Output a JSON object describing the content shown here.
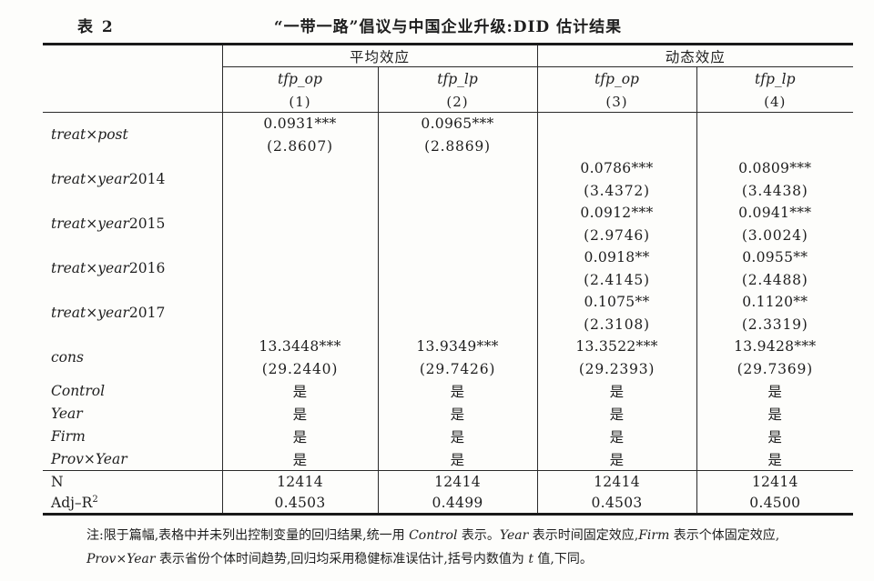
{
  "page": {
    "table_label": "表 2",
    "title": "“一带一路”倡议与中国企业升级:DID 估计结果"
  },
  "table": {
    "col_groups": [
      {
        "label": "平均效应"
      },
      {
        "label": "动态效应"
      }
    ],
    "columns": [
      {
        "var": "tfp_op",
        "num": "(1)"
      },
      {
        "var": "tfp_lp",
        "num": "(2)"
      },
      {
        "var": "tfp_op",
        "num": "(3)"
      },
      {
        "var": "tfp_lp",
        "num": "(4)"
      }
    ],
    "coef_rows": [
      {
        "label_italic": "treat×post",
        "label_roman": "",
        "coefs": [
          "0.0931***",
          "0.0965***",
          "",
          ""
        ],
        "tvals": [
          "(2.8607)",
          "(2.8869)",
          "",
          ""
        ]
      },
      {
        "label_italic": "treat×year",
        "label_roman": "2014",
        "coefs": [
          "",
          "",
          "0.0786***",
          "0.0809***"
        ],
        "tvals": [
          "",
          "",
          "(3.4372)",
          "(3.4438)"
        ]
      },
      {
        "label_italic": "treat×year",
        "label_roman": "2015",
        "coefs": [
          "",
          "",
          "0.0912***",
          "0.0941***"
        ],
        "tvals": [
          "",
          "",
          "(2.9746)",
          "(3.0024)"
        ]
      },
      {
        "label_italic": "treat×year",
        "label_roman": "2016",
        "coefs": [
          "",
          "",
          "0.0918**",
          "0.0955**"
        ],
        "tvals": [
          "",
          "",
          "(2.4145)",
          "(2.4488)"
        ]
      },
      {
        "label_italic": "treat×year",
        "label_roman": "2017",
        "coefs": [
          "",
          "",
          "0.1075**",
          "0.1120**"
        ],
        "tvals": [
          "",
          "",
          "(2.3108)",
          "(2.3319)"
        ]
      },
      {
        "label_italic": "cons",
        "label_roman": "",
        "coefs": [
          "13.3448***",
          "13.9349***",
          "13.3522***",
          "13.9428***"
        ],
        "tvals": [
          "(29.2440)",
          "(29.7426)",
          "(29.2393)",
          "(29.7369)"
        ]
      }
    ],
    "fe_rows": [
      {
        "label_italic": "Control",
        "values": [
          "是",
          "是",
          "是",
          "是"
        ]
      },
      {
        "label_italic": "Year",
        "values": [
          "是",
          "是",
          "是",
          "是"
        ]
      },
      {
        "label_italic": "Firm",
        "values": [
          "是",
          "是",
          "是",
          "是"
        ]
      },
      {
        "label_italic": "Prov×Year",
        "values": [
          "是",
          "是",
          "是",
          "是"
        ]
      }
    ],
    "stat_rows": [
      {
        "label": "N",
        "sup": "",
        "values": [
          "12414",
          "12414",
          "12414",
          "12414"
        ]
      },
      {
        "label": "Adj–R",
        "sup": "2",
        "values": [
          "0.4503",
          "0.4499",
          "0.4503",
          "0.4500"
        ]
      }
    ]
  },
  "note": {
    "lines": [
      [
        {
          "t": "注:限于篇幅,表格中并未列出控制变量的回归结果,统一用 ",
          "i": false
        },
        {
          "t": "Control",
          "i": true
        },
        {
          "t": " 表示。",
          "i": false
        },
        {
          "t": "Year",
          "i": true
        },
        {
          "t": " 表示时间固定效应,",
          "i": false
        },
        {
          "t": "Firm",
          "i": true
        },
        {
          "t": " 表示个体固定效应,",
          "i": false
        }
      ],
      [
        {
          "t": "Prov×Year",
          "i": true
        },
        {
          "t": " 表示省份个体时间趋势,回归均采用稳健标准误估计,括号内数值为 ",
          "i": false
        },
        {
          "t": "t",
          "i": true
        },
        {
          "t": " 值,下同。",
          "i": false
        }
      ]
    ]
  },
  "colors": {
    "text": "#1e1e1e",
    "rule": "#1a1a1a",
    "background": "#fdfdfb"
  }
}
